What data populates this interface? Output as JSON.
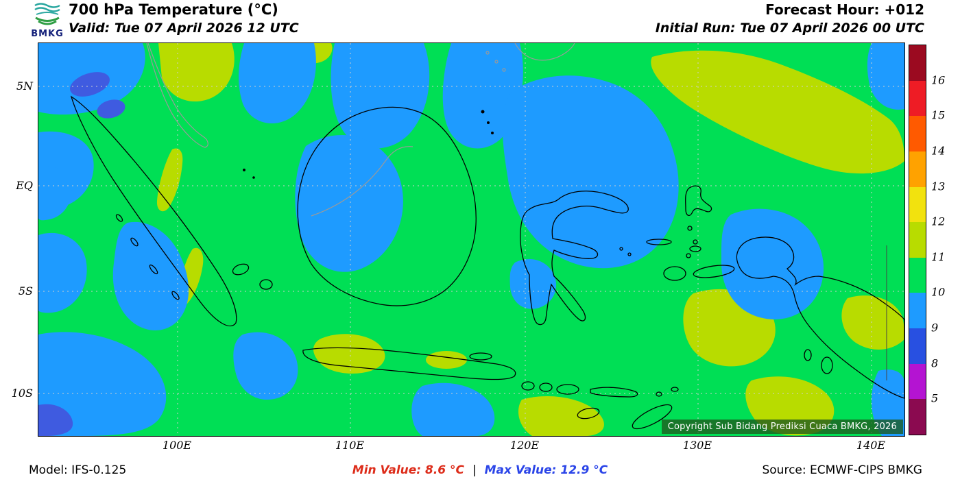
{
  "theme": {
    "map_green": "#00df55",
    "map_blue": "#1e9bff",
    "map_yellow_green": "#b8dc00",
    "map_dark_blue": "#3f5be0",
    "min_color": "#dd2c1a",
    "max_color": "#2b45e8",
    "copyright_bg": "rgba(30,90,30,0.78)"
  },
  "header": {
    "logo_text": "BMKG",
    "title": "700 hPa Temperature (°C)",
    "valid_line": "Valid: Tue 07 April 2026 12 UTC",
    "forecast_hour": "Forecast Hour: +012",
    "initial_run": "Initial Run: Tue 07 April 2026 00 UTC"
  },
  "map": {
    "lat_labels": [
      "5N",
      "EQ",
      "5S",
      "10S"
    ],
    "lon_labels": [
      "100E",
      "110E",
      "120E",
      "130E",
      "140E"
    ],
    "copyright": "Copyright Sub Bidang Prediksi Cuaca BMKG, 2026"
  },
  "colorbar": {
    "labels": [
      "16",
      "15",
      "14",
      "13",
      "12",
      "11",
      "10",
      "9",
      "8",
      "5"
    ],
    "colors": [
      "#9b0a20",
      "#ee1c25",
      "#ff5a00",
      "#ffa200",
      "#f2e20e",
      "#b8dc00",
      "#00df55",
      "#1e9bff",
      "#2850e1",
      "#b414d2",
      "#8b0a50"
    ]
  },
  "footer": {
    "model": "Model: IFS-0.125",
    "min_label": "Min Value: 8.6 °C",
    "separator": "|",
    "max_label": "Max Value: 12.9 °C",
    "source": "Source: ECMWF-CIPS BMKG"
  }
}
